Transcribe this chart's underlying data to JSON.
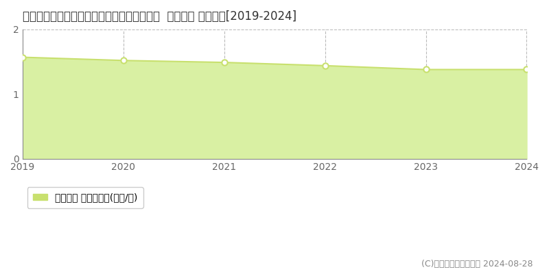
{
  "title": "兵庫県佐用郡佐用町三原字前田１４９番３外  地価公示 地価推移[2019-2024]",
  "years": [
    2019,
    2020,
    2021,
    2022,
    2023,
    2024
  ],
  "values": [
    1.57,
    1.52,
    1.49,
    1.44,
    1.38,
    1.38
  ],
  "ylim": [
    0,
    2
  ],
  "yticks": [
    0,
    1,
    2
  ],
  "line_color": "#c8e06e",
  "fill_color": "#d9f0a3",
  "marker_color": "#ffffff",
  "marker_edge_color": "#c8e06e",
  "grid_color": "#bbbbbb",
  "background_color": "#ffffff",
  "legend_label": "地価公示 平均坪単価(万円/坪)",
  "legend_color": "#c8e06e",
  "copyright_text": "(C)土地価格ドットコム 2024-08-28",
  "title_fontsize": 12,
  "tick_fontsize": 10,
  "legend_fontsize": 10,
  "copyright_fontsize": 9
}
